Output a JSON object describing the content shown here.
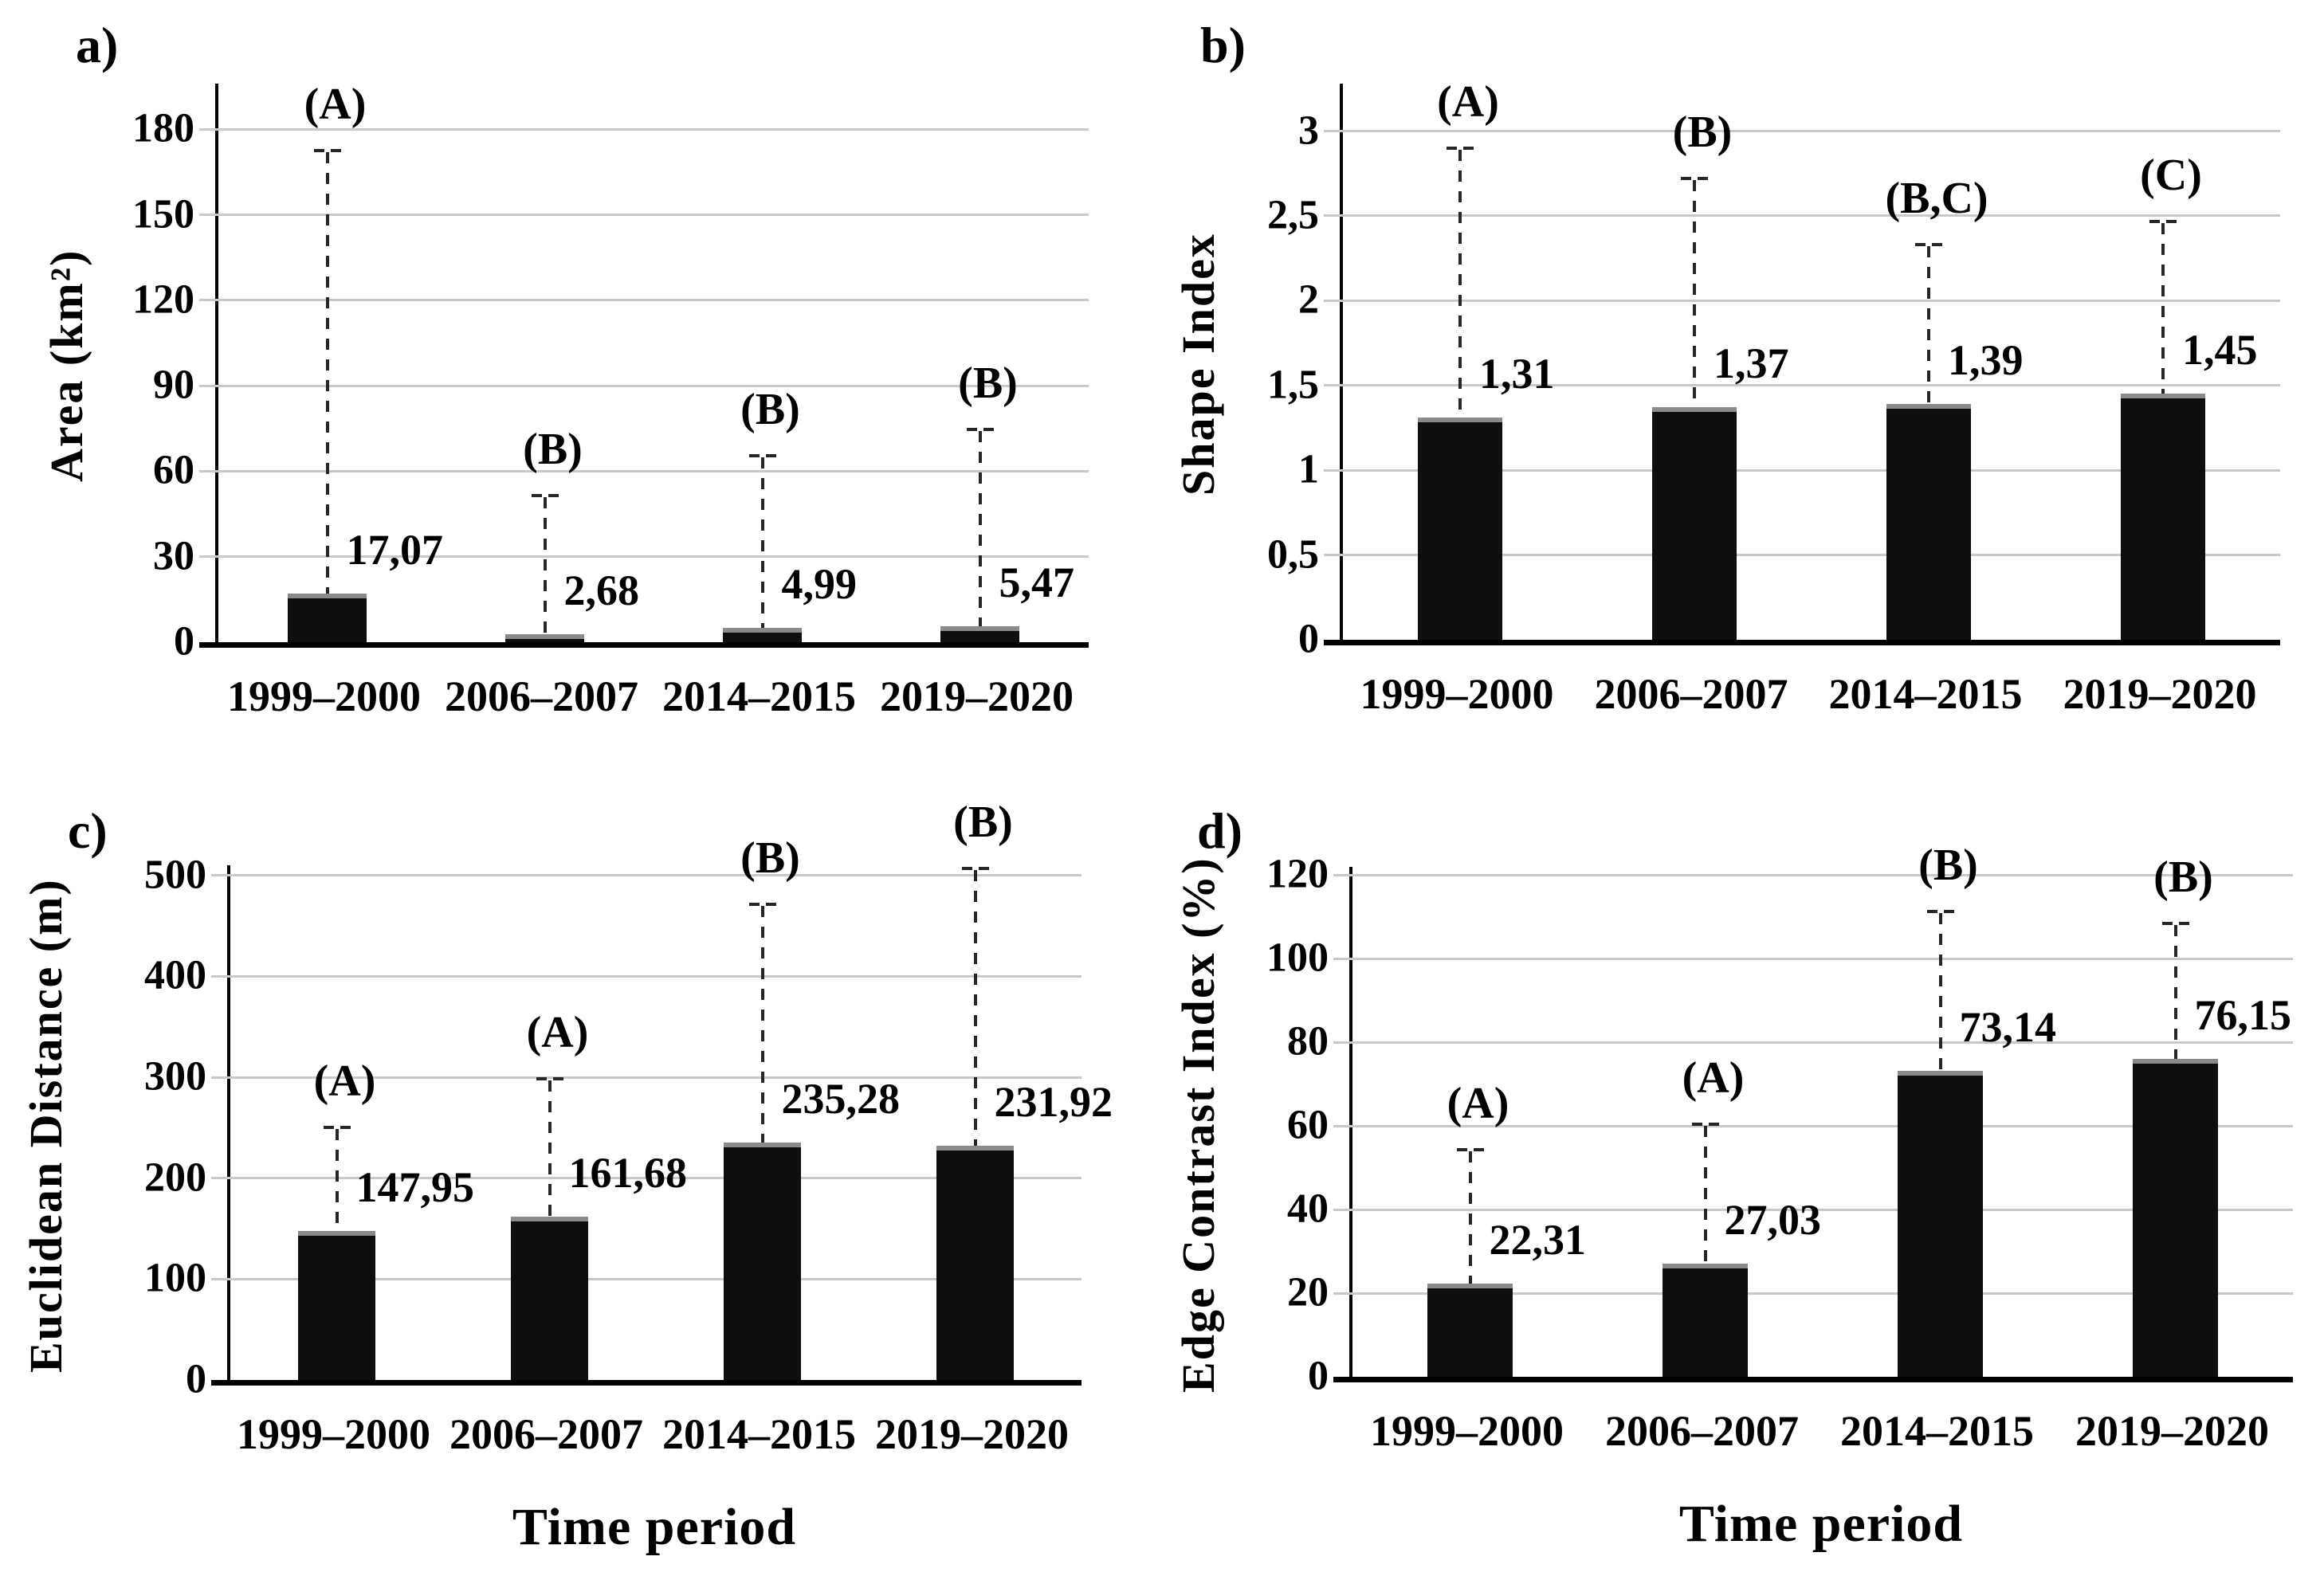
{
  "colors": {
    "background": "#ffffff",
    "bar": "#0e0e0e",
    "bar_top_cap": "#8a8a8a",
    "gridline": "#c9c9c9",
    "axis": "#000000",
    "error_bar": "#262626",
    "text": "#000000"
  },
  "chart_data": [
    {
      "panel": "a)",
      "type": "bar",
      "ylabel": "Area (km²)",
      "xlabel": "",
      "categories": [
        "1999–2000",
        "2006–2007",
        "2014–2015",
        "2019–2020"
      ],
      "values": [
        17.07,
        2.68,
        4.99,
        5.47
      ],
      "value_labels": [
        "17,07",
        "2,68",
        "4,99",
        "5,47"
      ],
      "sig_letters": [
        "(A)",
        "(B)",
        "(B)",
        "(B)"
      ],
      "error_bar_tops": [
        172,
        51,
        65,
        74
      ],
      "ylim": [
        0,
        196
      ],
      "yticks": [
        0,
        30,
        60,
        90,
        120,
        150,
        180
      ],
      "ytick_labels": [
        "0",
        "30",
        "60",
        "90",
        "120",
        "150",
        "180"
      ],
      "grid": true,
      "legend": false,
      "bar_color": "#0e0e0e"
    },
    {
      "panel": "b)",
      "type": "bar",
      "ylabel": "Shape Index",
      "xlabel": "",
      "categories": [
        "1999–2000",
        "2006–2007",
        "2014–2015",
        "2019–2020"
      ],
      "values": [
        1.31,
        1.37,
        1.39,
        1.45
      ],
      "value_labels": [
        "1,31",
        "1,37",
        "1,39",
        "1,45"
      ],
      "sig_letters": [
        "(A)",
        "(B)",
        "(B,C)",
        "(C)"
      ],
      "error_bar_tops": [
        2.89,
        2.71,
        2.32,
        2.46
      ],
      "ylim": [
        0,
        3.28
      ],
      "yticks": [
        0,
        0.5,
        1,
        1.5,
        2,
        2.5,
        3
      ],
      "ytick_labels": [
        "0",
        "0,5",
        "1",
        "1,5",
        "2",
        "2,5",
        "3"
      ],
      "grid": true,
      "legend": false,
      "bar_color": "#0e0e0e"
    },
    {
      "panel": "c)",
      "type": "bar",
      "ylabel": "Euclidean Distance (m)",
      "xlabel": "Time period",
      "categories": [
        "1999–2000",
        "2006–2007",
        "2014–2015",
        "2019–2020"
      ],
      "values": [
        147.95,
        161.68,
        235.28,
        231.92
      ],
      "value_labels": [
        "147,95",
        "161,68",
        "235,28",
        "231,92"
      ],
      "sig_letters": [
        "(A)",
        "(A)",
        "(B)",
        "(B)"
      ],
      "error_bar_tops": [
        249,
        297,
        470,
        505
      ],
      "ylim": [
        0,
        510
      ],
      "yticks": [
        0,
        100,
        200,
        300,
        400,
        500
      ],
      "ytick_labels": [
        "0",
        "100",
        "200",
        "300",
        "400",
        "500"
      ],
      "grid": true,
      "legend": false,
      "bar_color": "#0e0e0e"
    },
    {
      "panel": "d)",
      "type": "bar",
      "ylabel": "Edge Contrast Index (%)",
      "xlabel": "Time period",
      "categories": [
        "1999–2000",
        "2006–2007",
        "2014–2015",
        "2019–2020"
      ],
      "values": [
        22.31,
        27.03,
        73.14,
        76.15
      ],
      "value_labels": [
        "22,31",
        "27,03",
        "73,14",
        "76,15"
      ],
      "sig_letters": [
        "(A)",
        "(A)",
        "(B)",
        "(B)"
      ],
      "error_bar_tops": [
        54,
        60,
        111,
        108
      ],
      "ylim": [
        0,
        122
      ],
      "yticks": [
        0,
        20,
        40,
        60,
        80,
        100,
        120
      ],
      "ytick_labels": [
        "0",
        "20",
        "40",
        "60",
        "80",
        "100",
        "120"
      ],
      "grid": true,
      "legend": false,
      "bar_color": "#0e0e0e"
    }
  ]
}
